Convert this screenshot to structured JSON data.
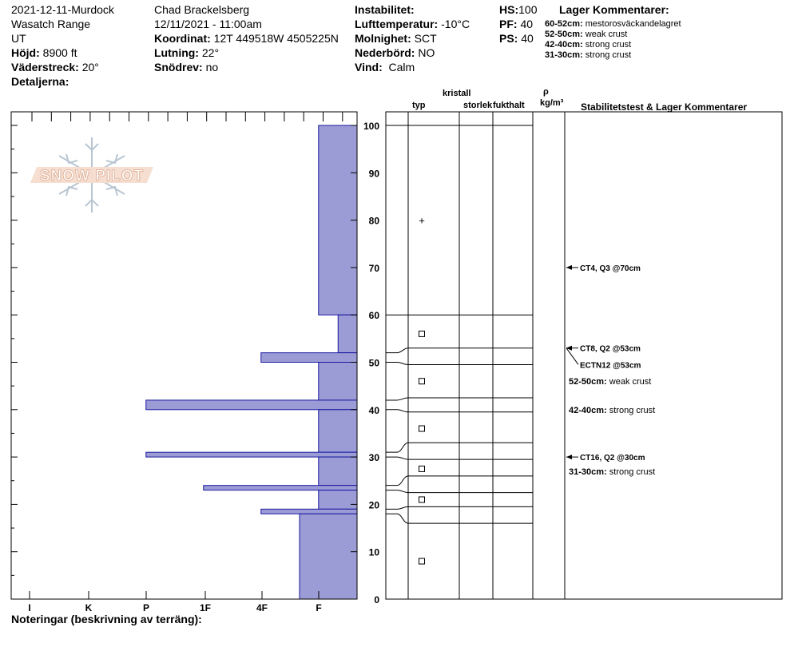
{
  "header": {
    "col1": [
      "2021-12-11-Murdock",
      "Wasatch Range",
      "UT"
    ],
    "height_label": "Höjd:",
    "height_value": "8900 ft",
    "aspect_label": "Väderstreck:",
    "aspect_value": "20°",
    "details_label": "Detaljerna:",
    "observer": "Chad Brackelsberg",
    "datetime": "12/11/2021 - 11:00am",
    "coord_label": "Koordinat:",
    "coord_value": "12T 449518W 4505225N",
    "slope_label": "Lutning:",
    "slope_value": "22°",
    "drift_label": "Snödrev:",
    "drift_value": "no",
    "instability_label": "Instabilitet:",
    "airtemp_label": "Lufttemperatur:",
    "airtemp_value": "-10°C",
    "sky_label": "Molnighet:",
    "sky_value": "SCT",
    "precip_label": "Nederbörd:",
    "precip_value": "NO",
    "wind_label": "Vind:",
    "wind_value": "Calm",
    "hs_label": "HS:",
    "hs_value": "100",
    "pf_label": "PF:",
    "pf_value": "40",
    "ps_label": "PS:",
    "ps_value": "40",
    "layer_comments_title": "Lager Kommentarer:",
    "layer_comments": [
      {
        "range": "60-52cm:",
        "text": "mestorosväckandelagret"
      },
      {
        "range": "52-50cm:",
        "text": "weak crust"
      },
      {
        "range": "42-40cm:",
        "text": "strong crust"
      },
      {
        "range": "31-30cm:",
        "text": "strong crust"
      }
    ]
  },
  "columns": {
    "kristall": "kristall",
    "typ": "typ",
    "storlek": "storlek",
    "fukthalt": "fukthalt",
    "rho": "ρ",
    "density_unit": "kg/m³",
    "stability": "Stabilitetstest & Lager Kommentarer"
  },
  "logo_text": "SNOW PILOT",
  "footer_note": "Noteringar (beskrivning av terräng):",
  "colors": {
    "bar_fill": "#9b9bd6",
    "bar_stroke": "#1a1aa0"
  },
  "chart_data": {
    "type": "bar",
    "orientation": "horizontal",
    "y_range": [
      0,
      100
    ],
    "y_ticks": [
      0,
      10,
      20,
      30,
      40,
      50,
      60,
      70,
      80,
      90,
      100
    ],
    "hardness_levels": [
      "I",
      "K",
      "P",
      "1F",
      "4F",
      "F"
    ],
    "hardness_scale": {
      "I": 6,
      "K": 5,
      "P": 4,
      "1F": 3,
      "4F": 2,
      "F": 1
    },
    "layers": [
      {
        "top": 100,
        "bottom": 60,
        "hardness": 0.67
      },
      {
        "top": 60,
        "bottom": 52,
        "hardness": 0.33
      },
      {
        "top": 52,
        "bottom": 50,
        "hardness": 1.67
      },
      {
        "top": 50,
        "bottom": 42,
        "hardness": 0.67
      },
      {
        "top": 42,
        "bottom": 40,
        "hardness": 3.67
      },
      {
        "top": 40,
        "bottom": 31,
        "hardness": 0.67
      },
      {
        "top": 31,
        "bottom": 30,
        "hardness": 3.67
      },
      {
        "top": 30,
        "bottom": 24,
        "hardness": 0.67
      },
      {
        "top": 24,
        "bottom": 23,
        "hardness": 2.67
      },
      {
        "top": 23,
        "bottom": 19,
        "hardness": 0.67
      },
      {
        "top": 19,
        "bottom": 18,
        "hardness": 1.67
      },
      {
        "top": 18,
        "bottom": 0,
        "hardness": 1.0
      }
    ],
    "layer_boundaries_left": [
      100,
      60,
      52,
      50,
      42,
      40,
      31,
      30,
      24,
      23,
      19,
      18
    ],
    "layer_boundaries_right": [
      100,
      60,
      53,
      49.5,
      42.5,
      39.5,
      33,
      29.5,
      26,
      22.5,
      19.5,
      16
    ],
    "grain_types": [
      {
        "depth": 80,
        "symbol": "+"
      },
      {
        "depth": 56,
        "symbol": "□"
      },
      {
        "depth": 46,
        "symbol": "□"
      },
      {
        "depth": 36,
        "symbol": "□"
      },
      {
        "depth": 27.5,
        "symbol": "□"
      },
      {
        "depth": 21,
        "symbol": "□"
      },
      {
        "depth": 8,
        "symbol": "□"
      }
    ],
    "stability_tests": [
      {
        "depth": 70,
        "label": "CT4, Q3 @70cm",
        "arrow": true
      },
      {
        "depth": 53,
        "label": "CT8, Q2 @53cm",
        "arrow": true
      },
      {
        "depth": 53,
        "label": "ECTN12 @53cm",
        "arrow": true,
        "label_depth": 49.5
      },
      {
        "depth": 30,
        "label": "CT16, Q2 @30cm",
        "arrow": true
      }
    ],
    "layer_notes": [
      {
        "depth": 46,
        "range": "52-50cm:",
        "text": "weak crust"
      },
      {
        "depth": 40,
        "range": "42-40cm:",
        "text": "strong crust"
      },
      {
        "depth": 27,
        "range": "31-30cm:",
        "text": "strong crust"
      }
    ]
  }
}
